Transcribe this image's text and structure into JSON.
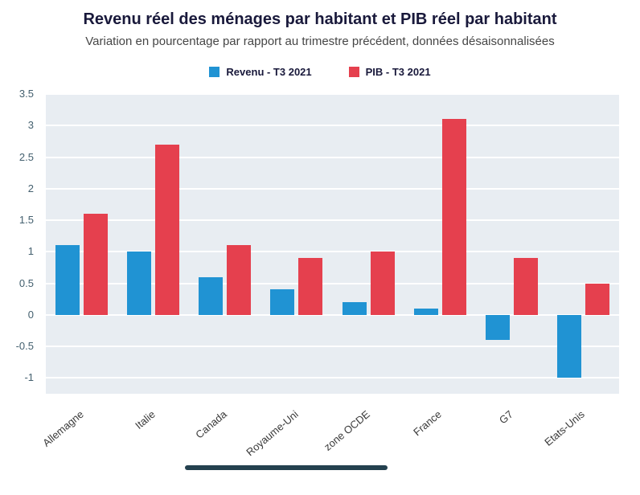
{
  "header": {
    "title": "Revenu réel des ménages par habitant et PIB réel par habitant",
    "subtitle": "Variation en pourcentage par rapport au trimestre précédent, données désaisonnalisées"
  },
  "chart_data": {
    "type": "bar",
    "title": "Revenu réel des ménages par habitant et PIB réel par habitant",
    "subtitle": "Variation en pourcentage par rapport au trimestre précédent, données désaisonnalisées",
    "categories": [
      "Allemagne",
      "Italie",
      "Canada",
      "Royaume-Uni",
      "zone OCDE",
      "France",
      "G7",
      "Etats-Unis"
    ],
    "series": [
      {
        "name": "Revenu - T3 2021",
        "color": "#2093d3",
        "values": [
          1.1,
          1.0,
          0.6,
          0.4,
          0.2,
          0.1,
          -0.4,
          -1.0
        ]
      },
      {
        "name": "PIB - T3 2021",
        "color": "#e5404e",
        "values": [
          1.6,
          2.7,
          1.1,
          0.9,
          1.0,
          3.1,
          0.9,
          0.5
        ]
      }
    ],
    "xlabel": "",
    "ylabel": "",
    "ylim": [
      -1.25,
      3.5
    ],
    "yticks": [
      3.5,
      3,
      2.5,
      2,
      1.5,
      1,
      0.5,
      0,
      -0.5,
      -1
    ],
    "grid": true,
    "legend_position": "top",
    "plot_background": "#e8edf2",
    "gridline_color": "#ffffff"
  }
}
